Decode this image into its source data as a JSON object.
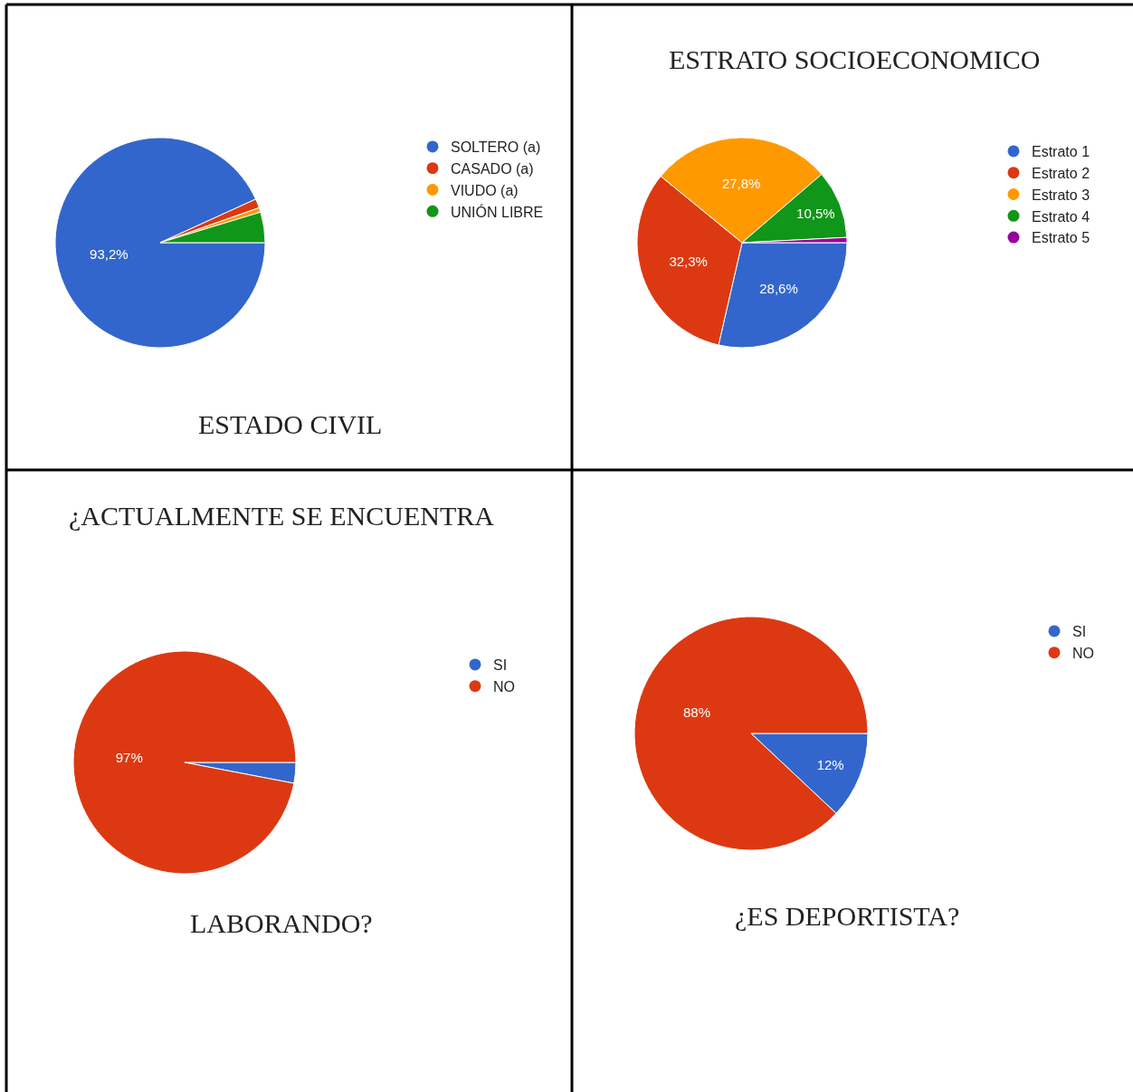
{
  "chart_data": [
    {
      "type": "pie",
      "title": "ESTADO CIVIL",
      "categories": [
        "SOLTERO (a)",
        "CASADO (a)",
        "VIUDO (a)",
        "UNIÓN LIBRE"
      ],
      "values": [
        93.2,
        1.4,
        0.7,
        4.7
      ],
      "colors": [
        "#3366cc",
        "#dc3912",
        "#ff9900",
        "#109618"
      ],
      "value_labels": [
        "93,2%",
        null,
        null,
        null
      ],
      "legend": "right"
    },
    {
      "type": "pie",
      "title": "ESTRATO SOCIOECONOMICO",
      "categories": [
        "Estrato 1",
        "Estrato 2",
        "Estrato 3",
        "Estrato 4",
        "Estrato 5"
      ],
      "values": [
        28.6,
        32.3,
        27.8,
        10.5,
        0.8
      ],
      "colors": [
        "#3366cc",
        "#dc3912",
        "#ff9900",
        "#109618",
        "#990099"
      ],
      "value_labels": [
        "28,6%",
        "32,3%",
        "27,8%",
        "10,5%",
        null
      ],
      "legend": "right"
    },
    {
      "type": "pie",
      "title": "¿ACTUALMENTE SE ENCUENTRA",
      "annotations": [
        "LABORANDO?"
      ],
      "categories": [
        "SI",
        "NO"
      ],
      "values": [
        3,
        97
      ],
      "colors": [
        "#3366cc",
        "#dc3912"
      ],
      "value_labels": [
        null,
        "97%"
      ],
      "legend": "right"
    },
    {
      "type": "pie",
      "title": "¿ES DEPORTISTA?",
      "categories": [
        "SI",
        "NO"
      ],
      "values": [
        12,
        88
      ],
      "colors": [
        "#3366cc",
        "#dc3912"
      ],
      "value_labels": [
        "12%",
        "88%"
      ],
      "legend": "right"
    }
  ]
}
